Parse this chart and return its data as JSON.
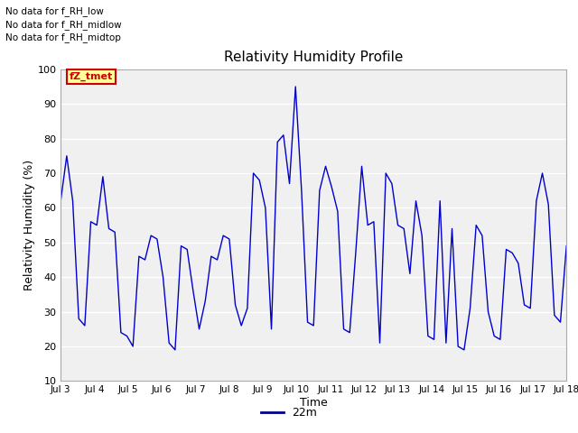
{
  "title": "Relativity Humidity Profile",
  "xlabel": "Time",
  "ylabel": "Relativity Humidity (%)",
  "ylim": [
    10,
    100
  ],
  "yticks": [
    10,
    20,
    30,
    40,
    50,
    60,
    70,
    80,
    90,
    100
  ],
  "legend_label": "22m",
  "line_color": "#0000cc",
  "legend_line_color": "#00008b",
  "bg_color": "#ffffff",
  "plot_bg_color": "#f0f0f0",
  "annotations": [
    "No data for f_RH_low",
    "No data for f̅RH̅midlow",
    "No data for f̅RH̅midtop"
  ],
  "ann_raw": [
    "No data for f_RH_low",
    "No data for f_RH_midlow",
    "No data for f_RH_midtop"
  ],
  "legend_box_color": "#ffff99",
  "legend_box_edge": "#cc0000",
  "legend_box_label": "fZ_tmet",
  "x_tick_labels": [
    "Jul 3",
    "Jul 4",
    "Jul 5",
    "Jul 6",
    "Jul 7",
    "Jul 8",
    "Jul 9",
    "Jul 10",
    "Jul 11",
    "Jul 12",
    "Jul 13",
    "Jul 14",
    "Jul 15",
    "Jul 16",
    "Jul 17",
    "Jul 18"
  ],
  "y_data": [
    62,
    75,
    62,
    28,
    26,
    56,
    55,
    69,
    54,
    53,
    24,
    23,
    20,
    46,
    45,
    52,
    51,
    40,
    21,
    19,
    49,
    48,
    36,
    25,
    33,
    46,
    45,
    52,
    51,
    32,
    26,
    31,
    70,
    68,
    60,
    25,
    79,
    81,
    67,
    95,
    65,
    27,
    26,
    65,
    72,
    66,
    59,
    25,
    24,
    47,
    72,
    55,
    56,
    21,
    70,
    67,
    55,
    54,
    41,
    62,
    52,
    23,
    22,
    62,
    21,
    54,
    20,
    19,
    31,
    55,
    52,
    30,
    23,
    22,
    48,
    47,
    44,
    32,
    31,
    62,
    70,
    61,
    29,
    27,
    49
  ]
}
